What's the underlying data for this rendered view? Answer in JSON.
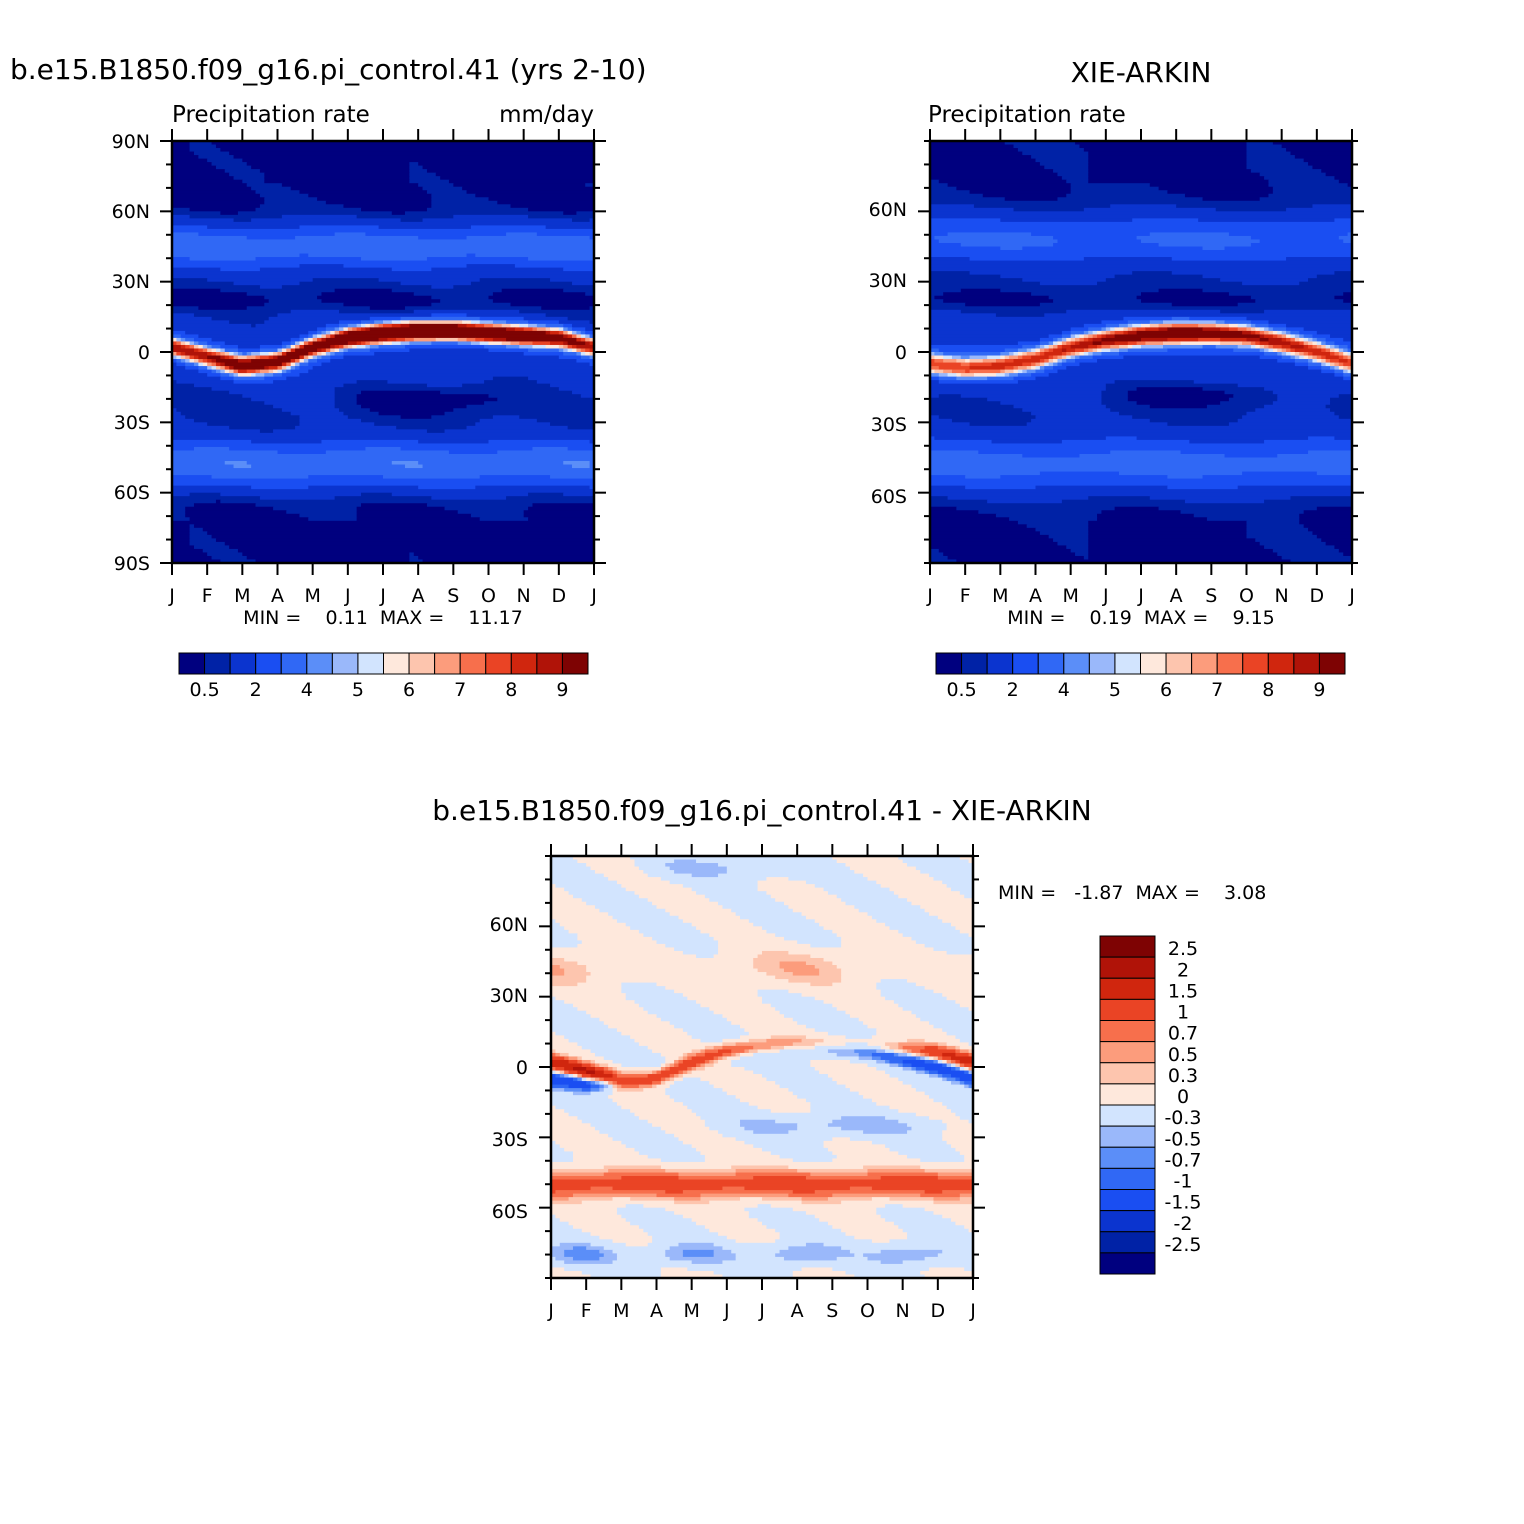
{
  "colors": {
    "abs_palette": [
      "#00007f",
      "#0022a6",
      "#0b34cf",
      "#1a4ef2",
      "#3068f5",
      "#5b8ef8",
      "#9ab8fa",
      "#d2e4fe",
      "#fee8dc",
      "#fdc5ae",
      "#fc9c7c",
      "#f76f4c",
      "#ea4425",
      "#d0260e",
      "#b01308",
      "#7e0303"
    ],
    "diff_palette": [
      "#00007f",
      "#0022a6",
      "#0b34cf",
      "#1a4ef2",
      "#3068f5",
      "#5b8ef8",
      "#9ab8fa",
      "#d2e4fe",
      "#fee8dc",
      "#fdc5ae",
      "#fc9c7c",
      "#f76f4c",
      "#ea4425",
      "#d0260e",
      "#b01308",
      "#7e0303"
    ]
  },
  "months": [
    "J",
    "F",
    "M",
    "A",
    "M",
    "J",
    "J",
    "A",
    "S",
    "O",
    "N",
    "D",
    "J"
  ],
  "panels": {
    "model": {
      "title": "b.e15.B1850.f09_g16.pi_control.41 (yrs 2-10)",
      "left_label": "Precipitation rate",
      "right_label": "mm/day",
      "lat_labels": [
        "90N",
        "60N",
        "30N",
        "0",
        "30S",
        "60S",
        "90S"
      ],
      "stats": "MIN =    0.11  MAX =    11.17",
      "colorbar_labels": [
        "0.5",
        "2",
        "4",
        "5",
        "6",
        "7",
        "8",
        "9"
      ]
    },
    "obs": {
      "title": "XIE-ARKIN",
      "left_label": "Precipitation rate",
      "lat_labels": [
        "60N",
        "30N",
        "0",
        "30S",
        "60S"
      ],
      "stats": "MIN =    0.19  MAX =    9.15",
      "colorbar_labels": [
        "0.5",
        "2",
        "4",
        "5",
        "6",
        "7",
        "8",
        "9"
      ]
    },
    "diff": {
      "title": "b.e15.B1850.f09_g16.pi_control.41 - XIE-ARKIN",
      "lat_labels": [
        "60N",
        "30N",
        "0",
        "30S",
        "60S"
      ],
      "stats": "MIN =   -1.87  MAX =    3.08",
      "colorbar_labels": [
        "2.5",
        "2",
        "1.5",
        "1",
        "0.7",
        "0.5",
        "0.3",
        "0",
        "-0.3",
        "-0.5",
        "-0.7",
        "-1",
        "-1.5",
        "-2",
        "-2.5"
      ]
    }
  },
  "chart_data": [
    {
      "type": "heatmap",
      "title": "b.e15.B1850.f09_g16.pi_control.41 (yrs 2-10)",
      "xlabel": "",
      "ylabel": "",
      "units": "mm/day",
      "x": [
        "J",
        "F",
        "M",
        "A",
        "M",
        "J",
        "J",
        "A",
        "S",
        "O",
        "N",
        "D",
        "J"
      ],
      "ylim": [
        -90,
        90
      ],
      "min": 0.11,
      "max": 11.17,
      "levels": [
        0.5,
        1,
        2,
        3,
        4,
        4.5,
        5,
        5.5,
        6,
        6.5,
        7,
        7.5,
        8,
        8.5,
        9
      ],
      "itcz_lat_by_month": [
        2,
        -2,
        -6,
        -4,
        2,
        6,
        8,
        9,
        9,
        8,
        7,
        6,
        2
      ],
      "itcz_peak_by_month": [
        7.5,
        7.2,
        8.0,
        8.2,
        8.8,
        9.5,
        10.5,
        11.0,
        10.5,
        10.0,
        9.5,
        8.5,
        7.5
      ]
    },
    {
      "type": "heatmap",
      "title": "XIE-ARKIN",
      "xlabel": "",
      "ylabel": "",
      "x": [
        "J",
        "F",
        "M",
        "A",
        "M",
        "J",
        "J",
        "A",
        "S",
        "O",
        "N",
        "D",
        "J"
      ],
      "ylim": [
        -90,
        90
      ],
      "min": 0.19,
      "max": 9.15,
      "levels": [
        0.5,
        1,
        2,
        3,
        4,
        4.5,
        5,
        5.5,
        6,
        6.5,
        7,
        7.5,
        8,
        8.5,
        9
      ],
      "itcz_lat_by_month": [
        -5,
        -7,
        -6,
        -3,
        2,
        5,
        7,
        8,
        8,
        7,
        4,
        0,
        -5
      ],
      "itcz_peak_by_month": [
        6.5,
        6.4,
        6.5,
        6.8,
        7.2,
        7.8,
        8.2,
        8.8,
        8.5,
        8.0,
        7.5,
        6.8,
        6.5
      ]
    },
    {
      "type": "heatmap",
      "title": "b.e15.B1850.f09_g16.pi_control.41 - XIE-ARKIN",
      "xlabel": "",
      "ylabel": "",
      "x": [
        "J",
        "F",
        "M",
        "A",
        "M",
        "J",
        "J",
        "A",
        "S",
        "O",
        "N",
        "D",
        "J"
      ],
      "ylim": [
        -90,
        90
      ],
      "min": -1.87,
      "max": 3.08,
      "levels": [
        -2.5,
        -2,
        -1.5,
        -1,
        -0.7,
        -0.5,
        -0.3,
        0,
        0.3,
        0.5,
        0.7,
        1,
        1.5,
        2,
        2.5
      ]
    }
  ]
}
